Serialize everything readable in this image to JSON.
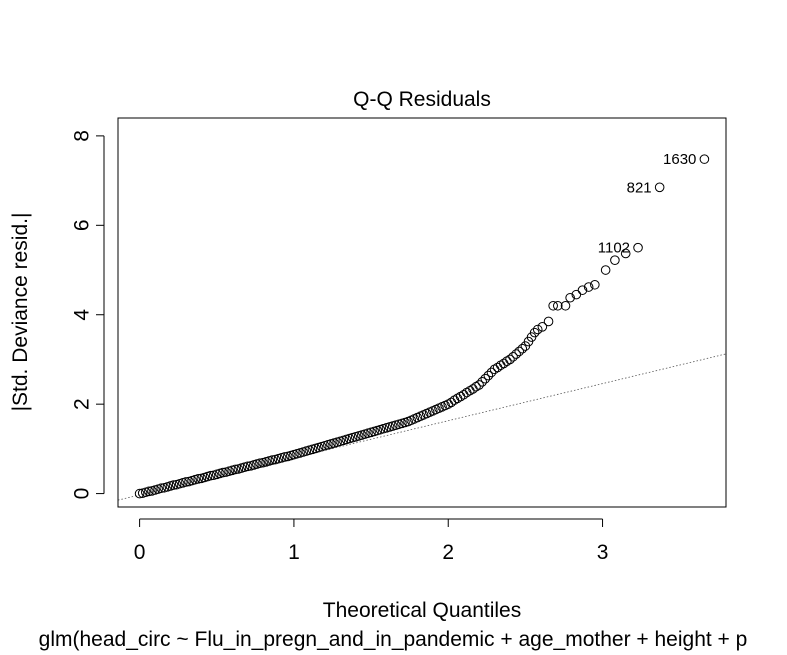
{
  "chart_data": {
    "type": "scatter",
    "title": "Q-Q Residuals",
    "xlabel": "Theoretical Quantiles",
    "ylabel": "|Std. Deviance resid.|",
    "subtitle": "glm(head_circ ~ Flu_in_pregn_and_in_pandemic + age_mother + height + p",
    "xlim": [
      -0.14,
      3.8
    ],
    "ylim": [
      -0.3,
      8.4
    ],
    "x_ticks": [
      "0",
      "1",
      "2",
      "3"
    ],
    "y_ticks": [
      "0",
      "2",
      "4",
      "6",
      "8"
    ],
    "grid": false,
    "reference_line": {
      "intercept": -0.03,
      "slope": 0.83
    },
    "points": [
      {
        "x": 0.0,
        "y": 0.0
      },
      {
        "x": 0.02,
        "y": 0.01
      },
      {
        "x": 0.04,
        "y": 0.03
      },
      {
        "x": 0.06,
        "y": 0.05
      },
      {
        "x": 0.08,
        "y": 0.06
      },
      {
        "x": 0.1,
        "y": 0.08
      },
      {
        "x": 0.12,
        "y": 0.1
      },
      {
        "x": 0.14,
        "y": 0.12
      },
      {
        "x": 0.16,
        "y": 0.13
      },
      {
        "x": 0.18,
        "y": 0.15
      },
      {
        "x": 0.2,
        "y": 0.17
      },
      {
        "x": 0.22,
        "y": 0.19
      },
      {
        "x": 0.24,
        "y": 0.2
      },
      {
        "x": 0.26,
        "y": 0.22
      },
      {
        "x": 0.28,
        "y": 0.24
      },
      {
        "x": 0.3,
        "y": 0.26
      },
      {
        "x": 0.32,
        "y": 0.27
      },
      {
        "x": 0.34,
        "y": 0.29
      },
      {
        "x": 0.36,
        "y": 0.31
      },
      {
        "x": 0.38,
        "y": 0.33
      },
      {
        "x": 0.4,
        "y": 0.34
      },
      {
        "x": 0.42,
        "y": 0.36
      },
      {
        "x": 0.44,
        "y": 0.38
      },
      {
        "x": 0.46,
        "y": 0.4
      },
      {
        "x": 0.48,
        "y": 0.41
      },
      {
        "x": 0.5,
        "y": 0.43
      },
      {
        "x": 0.52,
        "y": 0.45
      },
      {
        "x": 0.54,
        "y": 0.47
      },
      {
        "x": 0.56,
        "y": 0.48
      },
      {
        "x": 0.58,
        "y": 0.5
      },
      {
        "x": 0.6,
        "y": 0.52
      },
      {
        "x": 0.62,
        "y": 0.54
      },
      {
        "x": 0.64,
        "y": 0.55
      },
      {
        "x": 0.66,
        "y": 0.57
      },
      {
        "x": 0.68,
        "y": 0.59
      },
      {
        "x": 0.7,
        "y": 0.61
      },
      {
        "x": 0.72,
        "y": 0.62
      },
      {
        "x": 0.74,
        "y": 0.64
      },
      {
        "x": 0.76,
        "y": 0.66
      },
      {
        "x": 0.78,
        "y": 0.68
      },
      {
        "x": 0.8,
        "y": 0.69
      },
      {
        "x": 0.82,
        "y": 0.71
      },
      {
        "x": 0.84,
        "y": 0.73
      },
      {
        "x": 0.86,
        "y": 0.75
      },
      {
        "x": 0.88,
        "y": 0.76
      },
      {
        "x": 0.9,
        "y": 0.78
      },
      {
        "x": 0.92,
        "y": 0.8
      },
      {
        "x": 0.94,
        "y": 0.82
      },
      {
        "x": 0.96,
        "y": 0.83
      },
      {
        "x": 0.98,
        "y": 0.85
      },
      {
        "x": 1.0,
        "y": 0.87
      },
      {
        "x": 1.02,
        "y": 0.89
      },
      {
        "x": 1.04,
        "y": 0.91
      },
      {
        "x": 1.06,
        "y": 0.93
      },
      {
        "x": 1.08,
        "y": 0.95
      },
      {
        "x": 1.1,
        "y": 0.97
      },
      {
        "x": 1.12,
        "y": 0.99
      },
      {
        "x": 1.14,
        "y": 1.01
      },
      {
        "x": 1.16,
        "y": 1.03
      },
      {
        "x": 1.18,
        "y": 1.05
      },
      {
        "x": 1.2,
        "y": 1.07
      },
      {
        "x": 1.22,
        "y": 1.09
      },
      {
        "x": 1.24,
        "y": 1.11
      },
      {
        "x": 1.26,
        "y": 1.13
      },
      {
        "x": 1.28,
        "y": 1.15
      },
      {
        "x": 1.3,
        "y": 1.17
      },
      {
        "x": 1.32,
        "y": 1.19
      },
      {
        "x": 1.34,
        "y": 1.21
      },
      {
        "x": 1.36,
        "y": 1.23
      },
      {
        "x": 1.38,
        "y": 1.25
      },
      {
        "x": 1.4,
        "y": 1.27
      },
      {
        "x": 1.42,
        "y": 1.29
      },
      {
        "x": 1.44,
        "y": 1.31
      },
      {
        "x": 1.46,
        "y": 1.33
      },
      {
        "x": 1.48,
        "y": 1.35
      },
      {
        "x": 1.5,
        "y": 1.37
      },
      {
        "x": 1.52,
        "y": 1.39
      },
      {
        "x": 1.54,
        "y": 1.41
      },
      {
        "x": 1.56,
        "y": 1.43
      },
      {
        "x": 1.58,
        "y": 1.45
      },
      {
        "x": 1.6,
        "y": 1.47
      },
      {
        "x": 1.62,
        "y": 1.49
      },
      {
        "x": 1.64,
        "y": 1.51
      },
      {
        "x": 1.66,
        "y": 1.53
      },
      {
        "x": 1.68,
        "y": 1.55
      },
      {
        "x": 1.7,
        "y": 1.57
      },
      {
        "x": 1.72,
        "y": 1.59
      },
      {
        "x": 1.74,
        "y": 1.61
      },
      {
        "x": 1.76,
        "y": 1.64
      },
      {
        "x": 1.78,
        "y": 1.67
      },
      {
        "x": 1.8,
        "y": 1.7
      },
      {
        "x": 1.82,
        "y": 1.73
      },
      {
        "x": 1.84,
        "y": 1.76
      },
      {
        "x": 1.86,
        "y": 1.79
      },
      {
        "x": 1.88,
        "y": 1.82
      },
      {
        "x": 1.9,
        "y": 1.85
      },
      {
        "x": 1.92,
        "y": 1.88
      },
      {
        "x": 1.94,
        "y": 1.91
      },
      {
        "x": 1.96,
        "y": 1.94
      },
      {
        "x": 1.98,
        "y": 1.97
      },
      {
        "x": 2.0,
        "y": 2.0
      },
      {
        "x": 2.02,
        "y": 2.04
      },
      {
        "x": 2.04,
        "y": 2.09
      },
      {
        "x": 2.06,
        "y": 2.13
      },
      {
        "x": 2.08,
        "y": 2.17
      },
      {
        "x": 2.1,
        "y": 2.21
      },
      {
        "x": 2.12,
        "y": 2.26
      },
      {
        "x": 2.14,
        "y": 2.3
      },
      {
        "x": 2.16,
        "y": 2.34
      },
      {
        "x": 2.18,
        "y": 2.39
      },
      {
        "x": 2.2,
        "y": 2.43
      },
      {
        "x": 2.22,
        "y": 2.5
      },
      {
        "x": 2.24,
        "y": 2.57
      },
      {
        "x": 2.26,
        "y": 2.64
      },
      {
        "x": 2.28,
        "y": 2.71
      },
      {
        "x": 2.3,
        "y": 2.78
      },
      {
        "x": 2.32,
        "y": 2.82
      },
      {
        "x": 2.34,
        "y": 2.87
      },
      {
        "x": 2.36,
        "y": 2.91
      },
      {
        "x": 2.38,
        "y": 2.96
      },
      {
        "x": 2.4,
        "y": 3.0
      },
      {
        "x": 2.42,
        "y": 3.06
      },
      {
        "x": 2.44,
        "y": 3.12
      },
      {
        "x": 2.46,
        "y": 3.18
      },
      {
        "x": 2.48,
        "y": 3.24
      },
      {
        "x": 2.5,
        "y": 3.3
      },
      {
        "x": 2.52,
        "y": 3.4
      },
      {
        "x": 2.54,
        "y": 3.5
      },
      {
        "x": 2.56,
        "y": 3.6
      },
      {
        "x": 2.58,
        "y": 3.67
      },
      {
        "x": 2.61,
        "y": 3.73
      },
      {
        "x": 2.65,
        "y": 3.85
      },
      {
        "x": 2.68,
        "y": 4.2
      },
      {
        "x": 2.71,
        "y": 4.2
      },
      {
        "x": 2.76,
        "y": 4.2
      },
      {
        "x": 2.79,
        "y": 4.38
      },
      {
        "x": 2.83,
        "y": 4.45
      },
      {
        "x": 2.87,
        "y": 4.55
      },
      {
        "x": 2.91,
        "y": 4.62
      },
      {
        "x": 2.95,
        "y": 4.67
      },
      {
        "x": 3.02,
        "y": 5.0
      },
      {
        "x": 3.08,
        "y": 5.22
      },
      {
        "x": 3.15,
        "y": 5.37
      },
      {
        "x": 3.23,
        "y": 5.5
      },
      {
        "x": 3.37,
        "y": 6.85
      },
      {
        "x": 3.66,
        "y": 7.48
      }
    ],
    "annotations": [
      {
        "label": "1102",
        "x": 3.23,
        "y": 5.5
      },
      {
        "label": "821",
        "x": 3.37,
        "y": 6.85
      },
      {
        "label": "1630",
        "x": 3.66,
        "y": 7.48
      }
    ]
  }
}
